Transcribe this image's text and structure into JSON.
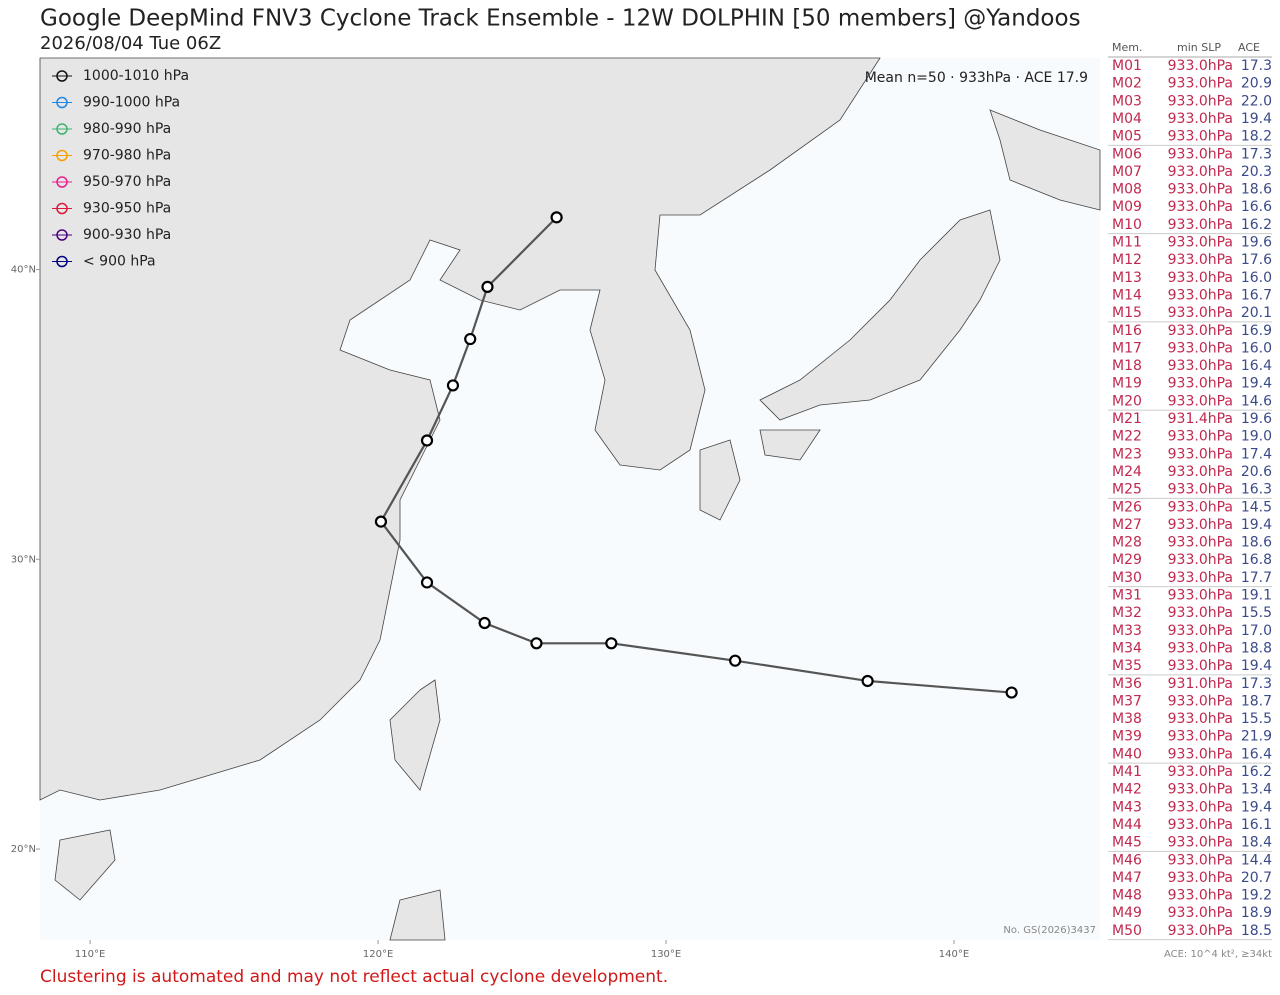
{
  "chart_data": {
    "type": "map",
    "title": "Google DeepMind FNV3 Cyclone Track Ensemble - 12W DOLPHIN [50 members] @Yandoos",
    "subtitle": "2026/08/04 Tue 06Z",
    "annotation": "Mean n=50 · 933hPa · ACE 17.9",
    "code": "No. GS(2026)3437",
    "legend": [
      {
        "label": "1000-1010 hPa",
        "color": "#111111"
      },
      {
        "label": "990-1000 hPa",
        "color": "#1e88e5"
      },
      {
        "label": "980-990 hPa",
        "color": "#3cb371"
      },
      {
        "label": "970-980 hPa",
        "color": "#f5a000"
      },
      {
        "label": "950-970 hPa",
        "color": "#e91e8c"
      },
      {
        "label": "930-950 hPa",
        "color": "#d81b3c"
      },
      {
        "label": "900-930 hPa",
        "color": "#4b0082"
      },
      {
        "label": "< 900 hPa",
        "color": "#000080"
      }
    ],
    "xlim": [
      108.26,
      145.07
    ],
    "ylim": [
      16.86,
      47.3
    ],
    "xticks": [
      {
        "value": 110,
        "label": "110°E"
      },
      {
        "value": 120,
        "label": "120°E"
      },
      {
        "value": 130,
        "label": "130°E"
      },
      {
        "value": 140,
        "label": "140°E"
      }
    ],
    "yticks": [
      {
        "value": 20,
        "label": "20°N"
      },
      {
        "value": 30,
        "label": "30°N"
      },
      {
        "value": 40,
        "label": "40°N"
      }
    ],
    "mean_track": {
      "x": [
        142.0,
        137.0,
        132.4,
        128.1,
        125.5,
        123.7,
        121.7,
        120.1,
        121.7,
        122.6,
        123.2,
        123.8,
        126.2
      ],
      "y": [
        25.4,
        25.8,
        26.5,
        27.1,
        27.1,
        27.8,
        29.2,
        31.3,
        34.1,
        36.0,
        37.6,
        39.4,
        41.8
      ]
    }
  },
  "table": {
    "headers": [
      "Mem.",
      "min SLP",
      "ACE"
    ],
    "rows": [
      [
        "M01",
        "933.0hPa",
        "17.3"
      ],
      [
        "M02",
        "933.0hPa",
        "20.9"
      ],
      [
        "M03",
        "933.0hPa",
        "22.0"
      ],
      [
        "M04",
        "933.0hPa",
        "19.4"
      ],
      [
        "M05",
        "933.0hPa",
        "18.2"
      ],
      [
        "M06",
        "933.0hPa",
        "17.3"
      ],
      [
        "M07",
        "933.0hPa",
        "20.3"
      ],
      [
        "M08",
        "933.0hPa",
        "18.6"
      ],
      [
        "M09",
        "933.0hPa",
        "16.6"
      ],
      [
        "M10",
        "933.0hPa",
        "16.2"
      ],
      [
        "M11",
        "933.0hPa",
        "19.6"
      ],
      [
        "M12",
        "933.0hPa",
        "17.6"
      ],
      [
        "M13",
        "933.0hPa",
        "16.0"
      ],
      [
        "M14",
        "933.0hPa",
        "16.7"
      ],
      [
        "M15",
        "933.0hPa",
        "20.1"
      ],
      [
        "M16",
        "933.0hPa",
        "16.9"
      ],
      [
        "M17",
        "933.0hPa",
        "16.0"
      ],
      [
        "M18",
        "933.0hPa",
        "16.4"
      ],
      [
        "M19",
        "933.0hPa",
        "19.4"
      ],
      [
        "M20",
        "933.0hPa",
        "14.6"
      ],
      [
        "M21",
        "931.4hPa",
        "19.6"
      ],
      [
        "M22",
        "933.0hPa",
        "19.0"
      ],
      [
        "M23",
        "933.0hPa",
        "17.4"
      ],
      [
        "M24",
        "933.0hPa",
        "20.6"
      ],
      [
        "M25",
        "933.0hPa",
        "16.3"
      ],
      [
        "M26",
        "933.0hPa",
        "14.5"
      ],
      [
        "M27",
        "933.0hPa",
        "19.4"
      ],
      [
        "M28",
        "933.0hPa",
        "18.6"
      ],
      [
        "M29",
        "933.0hPa",
        "16.8"
      ],
      [
        "M30",
        "933.0hPa",
        "17.7"
      ],
      [
        "M31",
        "933.0hPa",
        "19.1"
      ],
      [
        "M32",
        "933.0hPa",
        "15.5"
      ],
      [
        "M33",
        "933.0hPa",
        "17.0"
      ],
      [
        "M34",
        "933.0hPa",
        "18.8"
      ],
      [
        "M35",
        "933.0hPa",
        "19.4"
      ],
      [
        "M36",
        "931.0hPa",
        "17.3"
      ],
      [
        "M37",
        "933.0hPa",
        "18.7"
      ],
      [
        "M38",
        "933.0hPa",
        "15.5"
      ],
      [
        "M39",
        "933.0hPa",
        "21.9"
      ],
      [
        "M40",
        "933.0hPa",
        "16.4"
      ],
      [
        "M41",
        "933.0hPa",
        "16.2"
      ],
      [
        "M42",
        "933.0hPa",
        "13.4"
      ],
      [
        "M43",
        "933.0hPa",
        "19.4"
      ],
      [
        "M44",
        "933.0hPa",
        "16.1"
      ],
      [
        "M45",
        "933.0hPa",
        "18.4"
      ],
      [
        "M46",
        "933.0hPa",
        "14.4"
      ],
      [
        "M47",
        "933.0hPa",
        "20.7"
      ],
      [
        "M48",
        "933.0hPa",
        "19.2"
      ],
      [
        "M49",
        "933.0hPa",
        "18.9"
      ],
      [
        "M50",
        "933.0hPa",
        "18.5"
      ]
    ],
    "footnote": "ACE: 10^4 kt², ≥34kt"
  },
  "caption": "Clustering is automated and may not reflect actual cyclone development."
}
